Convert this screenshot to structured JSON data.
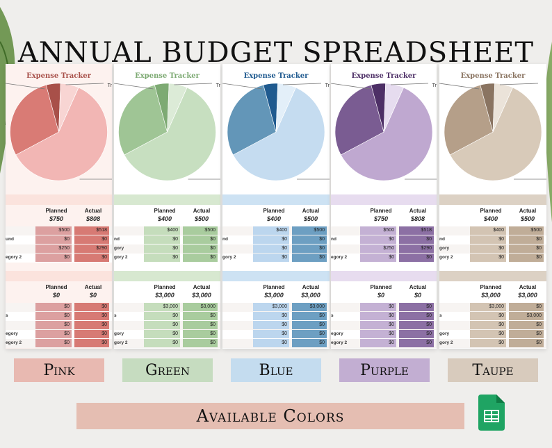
{
  "title": "Annual Budget Spreadsheet",
  "banner": "Available Colors",
  "cards": [
    {
      "key": "pink",
      "title": "Expense Tracker",
      "bg": "#fdf2ef",
      "pie": [
        "#f2b6b4",
        "#d97b75",
        "#a85049",
        "#f8d5d3"
      ],
      "band": "#fbe3dd",
      "cell": "#dca0a0",
      "cell2": "#d77a74",
      "rightTrunc": "Tr",
      "t1": {
        "planned_label": "Planned",
        "actual_label": "Actual",
        "planned": "$750",
        "actual": "$808"
      },
      "rows1": [
        {
          "label": "",
          "p": "$500",
          "a": "$518"
        },
        {
          "label": "und",
          "p": "$0",
          "a": "$0"
        },
        {
          "label": "",
          "p": "$250",
          "a": "$290"
        },
        {
          "label": "egory 2",
          "p": "$0",
          "a": "$0"
        }
      ],
      "t2": {
        "planned_label": "Planned",
        "actual_label": "Actual",
        "planned": "$0",
        "actual": "$0"
      },
      "rows2": [
        {
          "label": "",
          "p": "$0",
          "a": "$0"
        },
        {
          "label": "s",
          "p": "$0",
          "a": "$0"
        },
        {
          "label": "",
          "p": "$0",
          "a": "$0"
        },
        {
          "label": "egory",
          "p": "$0",
          "a": "$0"
        },
        {
          "label": "egory 2",
          "p": "$0",
          "a": "$0"
        }
      ]
    },
    {
      "key": "green",
      "title": "Expense Tracker",
      "bg": "#ffffff",
      "pie": [
        "#c7dfc0",
        "#9fc595",
        "#7daa73",
        "#dcebd7"
      ],
      "band": "#d7e8d0",
      "cell": "#c5ddbc",
      "cell2": "#a9cc9e",
      "rightTrunc": "Tr",
      "t1": {
        "planned_label": "Planned",
        "actual_label": "Actual",
        "planned": "$400",
        "actual": "$500"
      },
      "rows1": [
        {
          "label": "",
          "p": "$400",
          "a": "$500"
        },
        {
          "label": "nd",
          "p": "$0",
          "a": "$0"
        },
        {
          "label": "gory",
          "p": "$0",
          "a": "$0"
        },
        {
          "label": "gory 2",
          "p": "$0",
          "a": "$0"
        }
      ],
      "t2": {
        "planned_label": "Planned",
        "actual_label": "Actual",
        "planned": "$3,000",
        "actual": "$3,000"
      },
      "rows2": [
        {
          "label": "",
          "p": "$3,000",
          "a": "$3,000"
        },
        {
          "label": "s",
          "p": "$0",
          "a": "$0"
        },
        {
          "label": "",
          "p": "$0",
          "a": "$0"
        },
        {
          "label": "gory",
          "p": "$0",
          "a": "$0"
        },
        {
          "label": "gory 2",
          "p": "$0",
          "a": "$0"
        }
      ]
    },
    {
      "key": "blue",
      "title": "Expense Tracker",
      "bg": "#ffffff",
      "pie": [
        "#c5dcf0",
        "#6396b8",
        "#1f5a8f",
        "#e3eff9"
      ],
      "band": "#cde2f3",
      "cell": "#bcd6ee",
      "cell2": "#6d9fc2",
      "rightTrunc": "Tr",
      "t1": {
        "planned_label": "Planned",
        "actual_label": "Actual",
        "planned": "$400",
        "actual": "$500"
      },
      "rows1": [
        {
          "label": "",
          "p": "$400",
          "a": "$500"
        },
        {
          "label": "nd",
          "p": "$0",
          "a": "$0"
        },
        {
          "label": "",
          "p": "$0",
          "a": "$0"
        },
        {
          "label": "gory 2",
          "p": "$0",
          "a": "$0"
        }
      ],
      "t2": {
        "planned_label": "Planned",
        "actual_label": "Actual",
        "planned": "$3,000",
        "actual": "$3,000"
      },
      "rows2": [
        {
          "label": "",
          "p": "$3,000",
          "a": "$3,000"
        },
        {
          "label": "",
          "p": "$0",
          "a": "$0"
        },
        {
          "label": "",
          "p": "$0",
          "a": "$0"
        },
        {
          "label": "",
          "p": "$0",
          "a": "$0"
        },
        {
          "label": "",
          "p": "$0",
          "a": "$0"
        }
      ]
    },
    {
      "key": "purple",
      "title": "Expense Tracker",
      "bg": "#ffffff",
      "pie": [
        "#bfa8d0",
        "#7a5c92",
        "#4d2f66",
        "#e6dcef"
      ],
      "band": "#e7dcef",
      "cell": "#c4b1d4",
      "cell2": "#8c70a4",
      "rightTrunc": "Tr",
      "t1": {
        "planned_label": "Planned",
        "actual_label": "Actual",
        "planned": "$750",
        "actual": "$808"
      },
      "rows1": [
        {
          "label": "",
          "p": "$500",
          "a": "$518"
        },
        {
          "label": "nd",
          "p": "$0",
          "a": "$0"
        },
        {
          "label": "",
          "p": "$250",
          "a": "$290"
        },
        {
          "label": "egory 2",
          "p": "$0",
          "a": "$0"
        }
      ],
      "t2": {
        "planned_label": "Planned",
        "actual_label": "Actual",
        "planned": "$0",
        "actual": "$0"
      },
      "rows2": [
        {
          "label": "",
          "p": "$0",
          "a": "$0"
        },
        {
          "label": "s",
          "p": "$0",
          "a": "$0"
        },
        {
          "label": "",
          "p": "$0",
          "a": "$0"
        },
        {
          "label": "egory",
          "p": "$0",
          "a": "$0"
        },
        {
          "label": "egory 2",
          "p": "$0",
          "a": "$0"
        }
      ]
    },
    {
      "key": "taupe",
      "title": "Expense Tracker",
      "bg": "#ffffff",
      "pie": [
        "#d8cab9",
        "#b59f89",
        "#8a7461",
        "#ebe3d9"
      ],
      "band": "#dcd1c4",
      "cell": "#d3c4b3",
      "cell2": "#c0ad98",
      "rightTrunc": "",
      "t1": {
        "planned_label": "Planned",
        "actual_label": "Actual",
        "planned": "$400",
        "actual": "$500"
      },
      "rows1": [
        {
          "label": "",
          "p": "$400",
          "a": "$500"
        },
        {
          "label": "nd",
          "p": "$0",
          "a": "$0"
        },
        {
          "label": "gory",
          "p": "$0",
          "a": "$0"
        },
        {
          "label": "gory 2",
          "p": "$0",
          "a": "$0"
        }
      ],
      "t2": {
        "planned_label": "Planned",
        "actual_label": "Actual",
        "planned": "$3,000",
        "actual": "$3,000"
      },
      "rows2": [
        {
          "label": "",
          "p": "$3,000",
          "a": "$0"
        },
        {
          "label": "s",
          "p": "$0",
          "a": "$3,000"
        },
        {
          "label": "",
          "p": "$0",
          "a": "$0"
        },
        {
          "label": "gory",
          "p": "$0",
          "a": "$0"
        },
        {
          "label": "gory 2",
          "p": "$0",
          "a": "$0"
        }
      ]
    }
  ],
  "swatches": [
    {
      "label": "Pink",
      "color": "#e8b9b1"
    },
    {
      "label": "Green",
      "color": "#c6dcc0"
    },
    {
      "label": "Blue",
      "color": "#c4dcef"
    },
    {
      "label": "Purple",
      "color": "#c2aed2"
    },
    {
      "label": "Taupe",
      "color": "#d8cbbd"
    }
  ],
  "icon": "google-sheets-icon"
}
